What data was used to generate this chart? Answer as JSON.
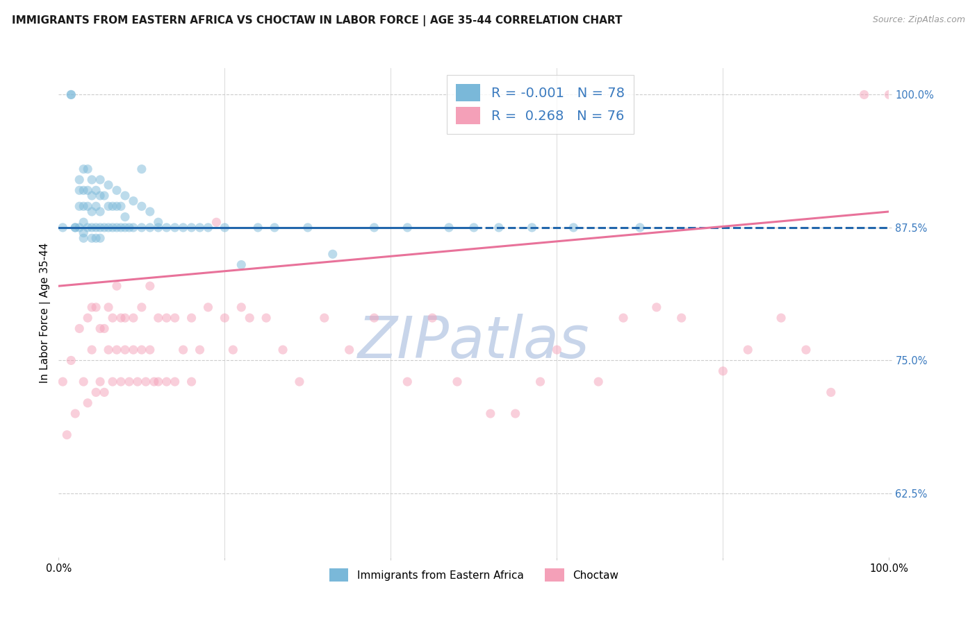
{
  "title": "IMMIGRANTS FROM EASTERN AFRICA VS CHOCTAW IN LABOR FORCE | AGE 35-44 CORRELATION CHART",
  "source": "Source: ZipAtlas.com",
  "ylabel": "In Labor Force | Age 35-44",
  "xlim": [
    0.0,
    1.0
  ],
  "ylim": [
    0.565,
    1.025
  ],
  "yticks": [
    0.625,
    0.75,
    0.875,
    1.0
  ],
  "ytick_labels": [
    "62.5%",
    "75.0%",
    "87.5%",
    "100.0%"
  ],
  "blue_R": -0.001,
  "blue_N": 78,
  "pink_R": 0.268,
  "pink_N": 76,
  "blue_color": "#7ab8d9",
  "pink_color": "#f4a0b8",
  "blue_line_color": "#2166ac",
  "pink_line_color": "#e8729a",
  "tick_color": "#3a7abf",
  "watermark_color": "#c8d5ea",
  "background_color": "#ffffff",
  "grid_color": "#cccccc",
  "blue_scatter_x": [
    0.005,
    0.015,
    0.015,
    0.02,
    0.02,
    0.025,
    0.025,
    0.025,
    0.025,
    0.03,
    0.03,
    0.03,
    0.03,
    0.03,
    0.03,
    0.035,
    0.035,
    0.035,
    0.035,
    0.04,
    0.04,
    0.04,
    0.04,
    0.04,
    0.045,
    0.045,
    0.045,
    0.045,
    0.05,
    0.05,
    0.05,
    0.05,
    0.05,
    0.055,
    0.055,
    0.06,
    0.06,
    0.06,
    0.065,
    0.065,
    0.07,
    0.07,
    0.07,
    0.075,
    0.075,
    0.08,
    0.08,
    0.08,
    0.085,
    0.09,
    0.09,
    0.1,
    0.1,
    0.1,
    0.11,
    0.11,
    0.12,
    0.12,
    0.13,
    0.14,
    0.15,
    0.16,
    0.17,
    0.18,
    0.2,
    0.22,
    0.24,
    0.26,
    0.3,
    0.33,
    0.38,
    0.42,
    0.47,
    0.5,
    0.53,
    0.57,
    0.62,
    0.7
  ],
  "blue_scatter_y": [
    0.875,
    1.0,
    1.0,
    0.875,
    0.875,
    0.92,
    0.91,
    0.895,
    0.875,
    0.93,
    0.91,
    0.895,
    0.88,
    0.87,
    0.865,
    0.93,
    0.91,
    0.895,
    0.875,
    0.92,
    0.905,
    0.89,
    0.875,
    0.865,
    0.91,
    0.895,
    0.875,
    0.865,
    0.92,
    0.905,
    0.89,
    0.875,
    0.865,
    0.905,
    0.875,
    0.915,
    0.895,
    0.875,
    0.895,
    0.875,
    0.91,
    0.895,
    0.875,
    0.895,
    0.875,
    0.905,
    0.885,
    0.875,
    0.875,
    0.9,
    0.875,
    0.93,
    0.895,
    0.875,
    0.89,
    0.875,
    0.88,
    0.875,
    0.875,
    0.875,
    0.875,
    0.875,
    0.875,
    0.875,
    0.875,
    0.84,
    0.875,
    0.875,
    0.875,
    0.85,
    0.875,
    0.875,
    0.875,
    0.875,
    0.875,
    0.875,
    0.875,
    0.875
  ],
  "pink_scatter_x": [
    0.005,
    0.01,
    0.015,
    0.02,
    0.025,
    0.03,
    0.035,
    0.035,
    0.04,
    0.04,
    0.045,
    0.045,
    0.05,
    0.05,
    0.055,
    0.055,
    0.06,
    0.06,
    0.065,
    0.065,
    0.07,
    0.07,
    0.075,
    0.075,
    0.08,
    0.08,
    0.085,
    0.09,
    0.09,
    0.095,
    0.1,
    0.1,
    0.105,
    0.11,
    0.11,
    0.115,
    0.12,
    0.12,
    0.13,
    0.13,
    0.14,
    0.14,
    0.15,
    0.16,
    0.16,
    0.17,
    0.18,
    0.19,
    0.2,
    0.21,
    0.22,
    0.23,
    0.25,
    0.27,
    0.29,
    0.32,
    0.35,
    0.38,
    0.42,
    0.45,
    0.48,
    0.52,
    0.55,
    0.58,
    0.6,
    0.65,
    0.68,
    0.72,
    0.75,
    0.8,
    0.83,
    0.87,
    0.9,
    0.93,
    0.97,
    1.0
  ],
  "pink_scatter_y": [
    0.73,
    0.68,
    0.75,
    0.7,
    0.78,
    0.73,
    0.71,
    0.79,
    0.8,
    0.76,
    0.72,
    0.8,
    0.78,
    0.73,
    0.72,
    0.78,
    0.8,
    0.76,
    0.73,
    0.79,
    0.76,
    0.82,
    0.73,
    0.79,
    0.79,
    0.76,
    0.73,
    0.79,
    0.76,
    0.73,
    0.8,
    0.76,
    0.73,
    0.82,
    0.76,
    0.73,
    0.79,
    0.73,
    0.79,
    0.73,
    0.79,
    0.73,
    0.76,
    0.79,
    0.73,
    0.76,
    0.8,
    0.88,
    0.79,
    0.76,
    0.8,
    0.79,
    0.79,
    0.76,
    0.73,
    0.79,
    0.76,
    0.79,
    0.73,
    0.79,
    0.73,
    0.7,
    0.7,
    0.73,
    0.76,
    0.73,
    0.79,
    0.8,
    0.79,
    0.74,
    0.76,
    0.79,
    0.76,
    0.72,
    1.0,
    1.0
  ],
  "blue_line_x0": 0.0,
  "blue_line_x1": 0.5,
  "blue_line_x2": 1.0,
  "blue_line_y": 0.875,
  "pink_line_x0": 0.0,
  "pink_line_x1": 1.0,
  "pink_line_y0": 0.82,
  "pink_line_y1": 0.89,
  "title_fontsize": 11,
  "source_fontsize": 9,
  "axis_label_fontsize": 11,
  "tick_fontsize": 10.5,
  "legend_fontsize": 14,
  "watermark_fontsize": 60,
  "marker_size": 90,
  "marker_alpha": 0.5,
  "line_width": 2.2
}
